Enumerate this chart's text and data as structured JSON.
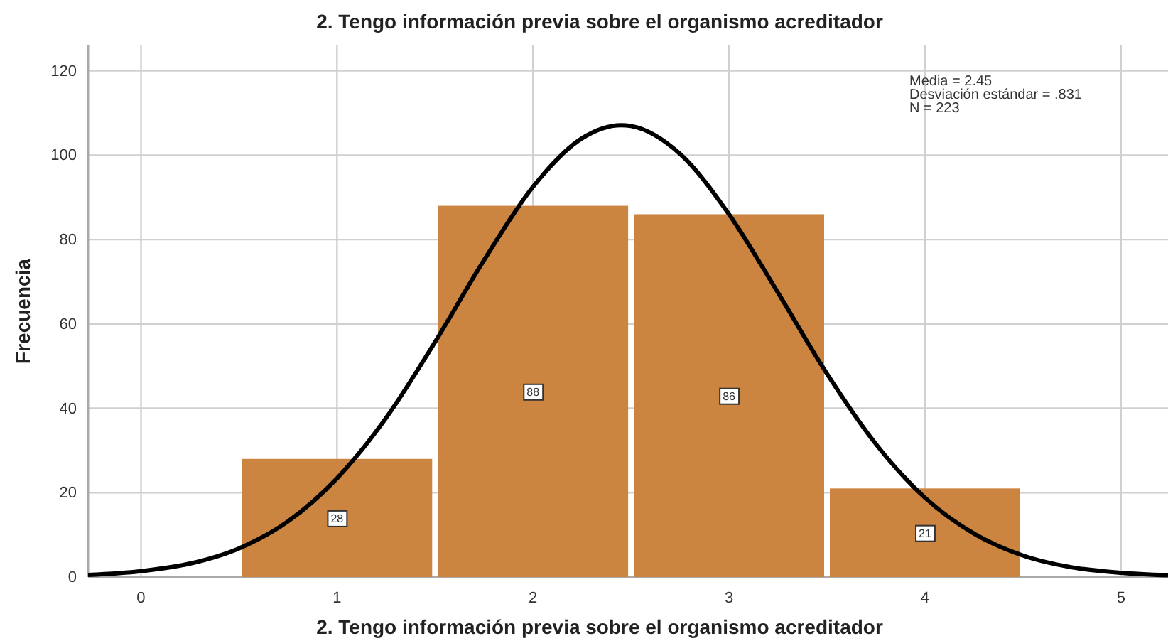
{
  "chart_data": {
    "type": "histogram",
    "title": "2. Tengo información previa sobre el organismo acreditador",
    "xlabel": "2. Tengo información previa sobre el organismo acreditador",
    "ylabel": "Frecuencia",
    "bins": [
      0.5,
      1.5,
      2.5,
      3.5,
      4.5
    ],
    "series": [
      {
        "color": "#cc8540",
        "values": [
          28,
          88,
          86,
          21
        ],
        "value_labels": [
          "28",
          "88",
          "86",
          "21"
        ]
      },
      {
        "type": "line",
        "color": "#000000",
        "x": [
          -0.27,
          0,
          0.25,
          0.5,
          0.75,
          1,
          1.25,
          1.5,
          1.75,
          2,
          2.25,
          2.45,
          2.5,
          2.75,
          3,
          3.25,
          3.5,
          3.75,
          4,
          4.25,
          4.5,
          4.75,
          5,
          5.24
        ],
        "values": [
          0.5,
          1.4,
          3.2,
          6.8,
          13.2,
          23.4,
          37.7,
          55.7,
          75.1,
          92.5,
          104,
          107.1,
          106.9,
          100.3,
          86,
          67.4,
          48.2,
          31.5,
          18.8,
          10.3,
          5.1,
          2.3,
          1,
          0.4
        ]
      }
    ],
    "xlim": [
      -0.27,
      5.24
    ],
    "xticks": [
      0,
      1,
      2,
      3,
      4,
      5
    ],
    "ylim": [
      0,
      126
    ],
    "yticks": [
      0,
      20,
      40,
      60,
      80,
      100,
      120
    ],
    "grid": true,
    "annotations": [
      "Media = 2.45",
      "Desviación estándar = .831",
      "N = 223"
    ]
  }
}
